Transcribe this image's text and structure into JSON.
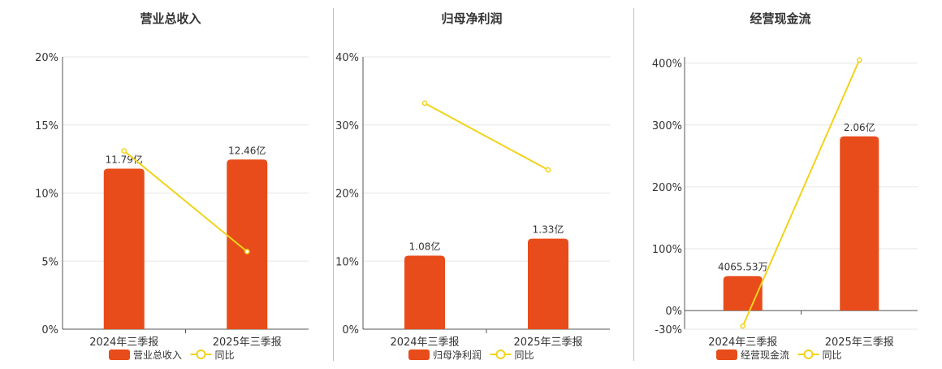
{
  "chart_data": [
    {
      "type": "bar",
      "title": "营业总收入",
      "categories": [
        "2024年三季报",
        "2025年三季报"
      ],
      "series": [
        {
          "name": "营业总收入",
          "type": "bar",
          "values": [
            11.79,
            12.46
          ],
          "labels": [
            "11.79亿",
            "12.46亿"
          ],
          "color": "#e84c1a"
        },
        {
          "name": "同比",
          "type": "line",
          "values": [
            13.1,
            5.7
          ],
          "color": "#f2d31b"
        }
      ],
      "ylim": [
        0,
        20
      ],
      "yticks": [
        "0%",
        "5%",
        "10%",
        "15%",
        "20%"
      ],
      "grid": true,
      "legend": "bottom"
    },
    {
      "type": "bar",
      "title": "归母净利润",
      "categories": [
        "2024年三季报",
        "2025年三季报"
      ],
      "series": [
        {
          "name": "归母净利润",
          "type": "bar",
          "values": [
            1.08,
            1.33
          ],
          "labels": [
            "1.08亿",
            "1.33亿"
          ],
          "color": "#e84c1a"
        },
        {
          "name": "同比",
          "type": "line",
          "values": [
            33.2,
            23.4
          ],
          "color": "#f2d31b"
        }
      ],
      "ylim": [
        0,
        40
      ],
      "yticks": [
        "0%",
        "10%",
        "20%",
        "30%",
        "40%"
      ],
      "grid": true,
      "legend": "bottom"
    },
    {
      "type": "bar",
      "title": "经营现金流",
      "categories": [
        "2024年三季报",
        "2025年三季报"
      ],
      "series": [
        {
          "name": "经营现金流",
          "type": "bar",
          "values": [
            0.406553,
            2.06
          ],
          "labels": [
            "4065.53万",
            "2.06亿"
          ],
          "color": "#e84c1a"
        },
        {
          "name": "同比",
          "type": "line",
          "values": [
            -25,
            405
          ],
          "color": "#f2d31b"
        }
      ],
      "ylim": [
        -30,
        410
      ],
      "yticks": [
        "-30%",
        "0%",
        "100%",
        "200%",
        "300%",
        "400%"
      ],
      "grid": true,
      "legend": "bottom"
    }
  ]
}
